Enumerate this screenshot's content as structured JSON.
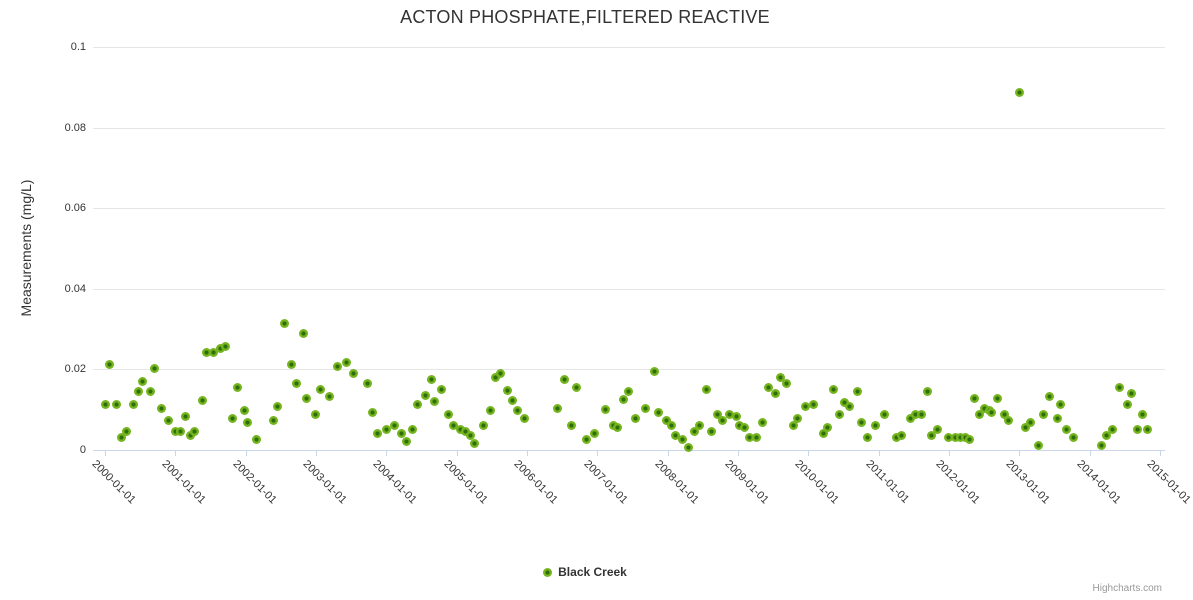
{
  "title": "ACTON PHOSPHATE,FILTERED REACTIVE",
  "credits_label": "Highcharts.com",
  "legend": {
    "series_label": "Black Creek"
  },
  "colors": {
    "marker_outer": "#74b41e",
    "marker_inner": "#2f6e0a",
    "gridline": "#e6e6e6",
    "axis_line": "#ccd6eb",
    "text": "#333333",
    "credits": "#999999"
  },
  "chart_data": {
    "type": "scatter",
    "title": "ACTON PHOSPHATE,FILTERED REACTIVE",
    "xlabel": "",
    "ylabel": "Measurements (mg/L)",
    "ylim": [
      0,
      0.1
    ],
    "xlim_years": [
      1999.83,
      2015.07
    ],
    "grid": true,
    "legend_position": "bottom-center",
    "yticks": [
      {
        "v": 0,
        "label": "0"
      },
      {
        "v": 0.02,
        "label": "0.02"
      },
      {
        "v": 0.04,
        "label": "0.04"
      },
      {
        "v": 0.06,
        "label": "0.06"
      },
      {
        "v": 0.08,
        "label": "0.08"
      },
      {
        "v": 0.1,
        "label": "0.1"
      }
    ],
    "xticks": [
      "2000-01-01",
      "2001-01-01",
      "2002-01-01",
      "2003-01-01",
      "2004-01-01",
      "2005-01-01",
      "2006-01-01",
      "2007-01-01",
      "2008-01-01",
      "2009-01-01",
      "2010-01-01",
      "2011-01-01",
      "2012-01-01",
      "2013-01-01",
      "2014-01-01",
      "2015-01-01"
    ],
    "series": [
      {
        "name": "Black Creek",
        "color": "#74b41e",
        "points": [
          [
            2000.0,
            0.0112
          ],
          [
            2000.07,
            0.0213
          ],
          [
            2000.16,
            0.0112
          ],
          [
            2000.23,
            0.0032
          ],
          [
            2000.31,
            0.0045
          ],
          [
            2000.4,
            0.0112
          ],
          [
            2000.48,
            0.0144
          ],
          [
            2000.54,
            0.0171
          ],
          [
            2000.64,
            0.0144
          ],
          [
            2000.71,
            0.0203
          ],
          [
            2000.81,
            0.0104
          ],
          [
            2000.9,
            0.0074
          ],
          [
            2001.0,
            0.0045
          ],
          [
            2001.07,
            0.0045
          ],
          [
            2001.14,
            0.0084
          ],
          [
            2001.21,
            0.0037
          ],
          [
            2001.27,
            0.0045
          ],
          [
            2001.39,
            0.0124
          ],
          [
            2001.45,
            0.0241
          ],
          [
            2001.54,
            0.0241
          ],
          [
            2001.64,
            0.0253
          ],
          [
            2001.71,
            0.0258
          ],
          [
            2001.81,
            0.0077
          ],
          [
            2001.89,
            0.0154
          ],
          [
            2001.98,
            0.0097
          ],
          [
            2002.03,
            0.0067
          ],
          [
            2002.16,
            0.0027
          ],
          [
            2002.4,
            0.0072
          ],
          [
            2002.45,
            0.0109
          ],
          [
            2002.55,
            0.0315
          ],
          [
            2002.65,
            0.0211
          ],
          [
            2002.72,
            0.0166
          ],
          [
            2002.82,
            0.029
          ],
          [
            2002.87,
            0.0127
          ],
          [
            2002.99,
            0.0087
          ],
          [
            2003.06,
            0.0149
          ],
          [
            2003.19,
            0.0132
          ],
          [
            2003.31,
            0.0208
          ],
          [
            2003.44,
            0.0216
          ],
          [
            2003.54,
            0.0189
          ],
          [
            2003.73,
            0.0166
          ],
          [
            2003.81,
            0.0092
          ],
          [
            2003.87,
            0.004
          ],
          [
            2004.0,
            0.005
          ],
          [
            2004.11,
            0.006
          ],
          [
            2004.21,
            0.0042
          ],
          [
            2004.28,
            0.002
          ],
          [
            2004.37,
            0.0052
          ],
          [
            2004.45,
            0.0114
          ],
          [
            2004.55,
            0.0134
          ],
          [
            2004.64,
            0.0176
          ],
          [
            2004.69,
            0.012
          ],
          [
            2004.79,
            0.0149
          ],
          [
            2004.89,
            0.0087
          ],
          [
            2004.96,
            0.0062
          ],
          [
            2005.05,
            0.005
          ],
          [
            2005.12,
            0.0045
          ],
          [
            2005.19,
            0.0037
          ],
          [
            2005.26,
            0.0017
          ],
          [
            2005.38,
            0.0062
          ],
          [
            2005.48,
            0.0097
          ],
          [
            2005.55,
            0.0181
          ],
          [
            2005.63,
            0.0189
          ],
          [
            2005.72,
            0.0147
          ],
          [
            2005.79,
            0.0122
          ],
          [
            2005.87,
            0.0099
          ],
          [
            2005.97,
            0.0077
          ],
          [
            2006.44,
            0.0104
          ],
          [
            2006.53,
            0.0176
          ],
          [
            2006.63,
            0.006
          ],
          [
            2006.71,
            0.0156
          ],
          [
            2006.84,
            0.0027
          ],
          [
            2006.96,
            0.0042
          ],
          [
            2007.11,
            0.01
          ],
          [
            2007.23,
            0.0062
          ],
          [
            2007.28,
            0.0055
          ],
          [
            2007.37,
            0.0126
          ],
          [
            2007.44,
            0.0144
          ],
          [
            2007.55,
            0.0077
          ],
          [
            2007.68,
            0.0102
          ],
          [
            2007.81,
            0.0196
          ],
          [
            2007.87,
            0.0094
          ],
          [
            2007.98,
            0.0074
          ],
          [
            2008.05,
            0.0062
          ],
          [
            2008.11,
            0.0037
          ],
          [
            2008.21,
            0.0027
          ],
          [
            2008.29,
            0.0005
          ],
          [
            2008.38,
            0.0045
          ],
          [
            2008.45,
            0.006
          ],
          [
            2008.55,
            0.0151
          ],
          [
            2008.62,
            0.0045
          ],
          [
            2008.71,
            0.0087
          ],
          [
            2008.78,
            0.0072
          ],
          [
            2008.88,
            0.0087
          ],
          [
            2008.98,
            0.0084
          ],
          [
            2009.02,
            0.0062
          ],
          [
            2009.09,
            0.0055
          ],
          [
            2009.16,
            0.0032
          ],
          [
            2009.26,
            0.0032
          ],
          [
            2009.35,
            0.0067
          ],
          [
            2009.43,
            0.0154
          ],
          [
            2009.53,
            0.0141
          ],
          [
            2009.6,
            0.0179
          ],
          [
            2009.69,
            0.0166
          ],
          [
            2009.79,
            0.0062
          ],
          [
            2009.84,
            0.0077
          ],
          [
            2009.96,
            0.0109
          ],
          [
            2010.07,
            0.0114
          ],
          [
            2010.21,
            0.004
          ],
          [
            2010.27,
            0.0055
          ],
          [
            2010.36,
            0.0151
          ],
          [
            2010.44,
            0.0089
          ],
          [
            2010.51,
            0.0119
          ],
          [
            2010.58,
            0.0107
          ],
          [
            2010.7,
            0.0146
          ],
          [
            2010.75,
            0.0069
          ],
          [
            2010.84,
            0.0032
          ],
          [
            2010.95,
            0.006
          ],
          [
            2011.09,
            0.0087
          ],
          [
            2011.25,
            0.003
          ],
          [
            2011.32,
            0.0037
          ],
          [
            2011.45,
            0.0077
          ],
          [
            2011.52,
            0.0087
          ],
          [
            2011.61,
            0.0087
          ],
          [
            2011.69,
            0.0146
          ],
          [
            2011.75,
            0.0035
          ],
          [
            2011.83,
            0.0052
          ],
          [
            2012.0,
            0.003
          ],
          [
            2012.09,
            0.003
          ],
          [
            2012.16,
            0.0032
          ],
          [
            2012.23,
            0.003
          ],
          [
            2012.29,
            0.0027
          ],
          [
            2012.36,
            0.0129
          ],
          [
            2012.44,
            0.0089
          ],
          [
            2012.5,
            0.0104
          ],
          [
            2012.57,
            0.0099
          ],
          [
            2012.61,
            0.0094
          ],
          [
            2012.69,
            0.0127
          ],
          [
            2012.79,
            0.0087
          ],
          [
            2012.84,
            0.0074
          ],
          [
            2013.01,
            0.0888
          ],
          [
            2013.09,
            0.0055
          ],
          [
            2013.16,
            0.0067
          ],
          [
            2013.27,
            0.001
          ],
          [
            2013.34,
            0.0087
          ],
          [
            2013.43,
            0.0132
          ],
          [
            2013.54,
            0.0079
          ],
          [
            2013.58,
            0.0112
          ],
          [
            2013.67,
            0.005
          ],
          [
            2013.77,
            0.0032
          ],
          [
            2014.17,
            0.0012
          ],
          [
            2014.24,
            0.0037
          ],
          [
            2014.32,
            0.0052
          ],
          [
            2014.42,
            0.0156
          ],
          [
            2014.54,
            0.0112
          ],
          [
            2014.59,
            0.0141
          ],
          [
            2014.68,
            0.005
          ],
          [
            2014.75,
            0.0089
          ],
          [
            2014.83,
            0.0052
          ]
        ]
      }
    ]
  }
}
